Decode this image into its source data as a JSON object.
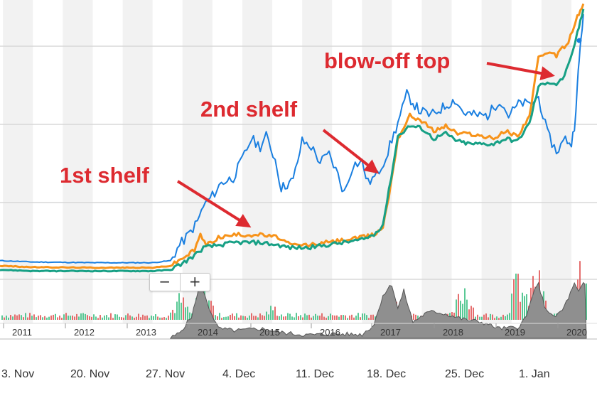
{
  "chart_data": {
    "type": "line",
    "x_tick_labels": [
      "2011",
      "2012",
      "2013",
      "2014",
      "2015",
      "2016",
      "2017",
      "2018",
      "2019",
      "2020"
    ],
    "navigator_date_labels": [
      "3. Nov",
      "20. Nov",
      "27. Nov",
      "4. Dec",
      "11. Dec",
      "18. Dec",
      "25. Dec",
      "1. Jan"
    ],
    "xlim": [
      2010.45,
      2020.25
    ],
    "ylim": [
      0,
      100
    ],
    "grid": true,
    "series": [
      {
        "color": "#1a7fe0",
        "points": [
          [
            2010.45,
            5
          ],
          [
            2011,
            4.5
          ],
          [
            2012,
            4.2
          ],
          [
            2013,
            4.2
          ],
          [
            2013.3,
            5
          ],
          [
            2013.45,
            11
          ],
          [
            2013.6,
            15
          ],
          [
            2013.75,
            20
          ],
          [
            2013.85,
            26
          ],
          [
            2014,
            30
          ],
          [
            2014.15,
            35
          ],
          [
            2014.35,
            37
          ],
          [
            2014.5,
            44
          ],
          [
            2014.65,
            52
          ],
          [
            2014.8,
            49
          ],
          [
            2014.9,
            53
          ],
          [
            2015.05,
            44
          ],
          [
            2015.15,
            33
          ],
          [
            2015.35,
            36
          ],
          [
            2015.5,
            51
          ],
          [
            2015.65,
            49
          ],
          [
            2015.8,
            43
          ],
          [
            2015.95,
            46
          ],
          [
            2016.1,
            38
          ],
          [
            2016.2,
            31
          ],
          [
            2016.35,
            42
          ],
          [
            2016.5,
            43
          ],
          [
            2016.6,
            35
          ],
          [
            2016.75,
            38
          ],
          [
            2016.9,
            45
          ],
          [
            2017.1,
            58
          ],
          [
            2017.25,
            69
          ],
          [
            2017.45,
            63
          ],
          [
            2017.65,
            61
          ],
          [
            2017.85,
            64
          ],
          [
            2018.05,
            67
          ],
          [
            2018.2,
            62
          ],
          [
            2018.4,
            61
          ],
          [
            2018.6,
            61
          ],
          [
            2018.8,
            67
          ],
          [
            2018.95,
            61
          ],
          [
            2019.15,
            66
          ],
          [
            2019.3,
            65
          ],
          [
            2019.45,
            68
          ],
          [
            2019.6,
            54
          ],
          [
            2019.75,
            47
          ],
          [
            2019.9,
            52
          ],
          [
            2020.0,
            50
          ],
          [
            2020.05,
            57
          ],
          [
            2020.1,
            72
          ],
          [
            2020.13,
            82
          ],
          [
            2020.16,
            91
          ],
          [
            2020.2,
            100
          ]
        ]
      },
      {
        "color": "#f7931a",
        "points": [
          [
            2010.45,
            3
          ],
          [
            2011,
            2.5
          ],
          [
            2012,
            2.3
          ],
          [
            2013,
            2.3
          ],
          [
            2013.3,
            3
          ],
          [
            2013.5,
            6
          ],
          [
            2013.7,
            9
          ],
          [
            2013.8,
            15
          ],
          [
            2013.9,
            11
          ],
          [
            2014.1,
            14
          ],
          [
            2014.4,
            15
          ],
          [
            2014.8,
            15
          ],
          [
            2015.1,
            14
          ],
          [
            2015.3,
            11
          ],
          [
            2015.6,
            11
          ],
          [
            2015.9,
            12
          ],
          [
            2016.2,
            13
          ],
          [
            2016.5,
            14
          ],
          [
            2016.7,
            15
          ],
          [
            2016.85,
            18
          ],
          [
            2016.95,
            30
          ],
          [
            2017.1,
            52
          ],
          [
            2017.3,
            61
          ],
          [
            2017.5,
            59
          ],
          [
            2017.7,
            55
          ],
          [
            2017.9,
            57
          ],
          [
            2018.1,
            54
          ],
          [
            2018.3,
            54
          ],
          [
            2018.5,
            53
          ],
          [
            2018.7,
            52
          ],
          [
            2018.9,
            55
          ],
          [
            2019.1,
            53
          ],
          [
            2019.3,
            61
          ],
          [
            2019.45,
            83
          ],
          [
            2019.6,
            85
          ],
          [
            2019.75,
            84
          ],
          [
            2019.85,
            87
          ],
          [
            2019.95,
            89
          ],
          [
            2020.02,
            94
          ],
          [
            2020.1,
            99
          ],
          [
            2020.15,
            101
          ],
          [
            2020.2,
            104
          ]
        ]
      },
      {
        "color": "#17a085",
        "points": [
          [
            2010.45,
            1.5
          ],
          [
            2011,
            1
          ],
          [
            2012,
            1
          ],
          [
            2013,
            1
          ],
          [
            2013.3,
            1.5
          ],
          [
            2013.5,
            4
          ],
          [
            2013.7,
            7
          ],
          [
            2013.85,
            10
          ],
          [
            2014.1,
            11
          ],
          [
            2014.4,
            12
          ],
          [
            2014.8,
            12
          ],
          [
            2015.1,
            11
          ],
          [
            2015.3,
            10
          ],
          [
            2015.6,
            10
          ],
          [
            2015.9,
            11
          ],
          [
            2016.2,
            12
          ],
          [
            2016.5,
            13
          ],
          [
            2016.7,
            15
          ],
          [
            2016.85,
            19
          ],
          [
            2016.95,
            32
          ],
          [
            2017.1,
            53
          ],
          [
            2017.3,
            57
          ],
          [
            2017.5,
            56
          ],
          [
            2017.7,
            52
          ],
          [
            2017.9,
            54
          ],
          [
            2018.1,
            51
          ],
          [
            2018.3,
            50
          ],
          [
            2018.5,
            50
          ],
          [
            2018.7,
            50
          ],
          [
            2018.9,
            52
          ],
          [
            2019.1,
            51
          ],
          [
            2019.3,
            58
          ],
          [
            2019.45,
            72
          ],
          [
            2019.6,
            74
          ],
          [
            2019.75,
            73
          ],
          [
            2019.85,
            75
          ],
          [
            2019.95,
            80
          ],
          [
            2020.02,
            85
          ],
          [
            2020.1,
            93
          ],
          [
            2020.15,
            97
          ],
          [
            2020.2,
            102
          ]
        ]
      }
    ],
    "volume": {
      "up_color": "#3cbf83",
      "down_color": "#e05555",
      "baseline": 6,
      "spikes": [
        [
          2013.45,
          26
        ],
        [
          2013.85,
          40
        ],
        [
          2015.0,
          15
        ],
        [
          2016.95,
          30
        ],
        [
          2017.05,
          45
        ],
        [
          2018.2,
          40
        ],
        [
          2019.1,
          50
        ],
        [
          2019.4,
          55
        ],
        [
          2020.1,
          68
        ],
        [
          2020.18,
          80
        ]
      ]
    },
    "navigator": {
      "fill": "#8f8f8f",
      "points": [
        [
          2013.3,
          0
        ],
        [
          2013.45,
          10
        ],
        [
          2013.65,
          40
        ],
        [
          2013.8,
          100
        ],
        [
          2013.95,
          55
        ],
        [
          2014.1,
          18
        ],
        [
          2014.4,
          14
        ],
        [
          2014.8,
          18
        ],
        [
          2015.2,
          10
        ],
        [
          2015.6,
          6
        ],
        [
          2016.0,
          8
        ],
        [
          2016.5,
          7
        ],
        [
          2016.7,
          25
        ],
        [
          2016.85,
          80
        ],
        [
          2017.0,
          100
        ],
        [
          2017.1,
          55
        ],
        [
          2017.2,
          88
        ],
        [
          2017.35,
          30
        ],
        [
          2017.55,
          45
        ],
        [
          2017.7,
          50
        ],
        [
          2017.9,
          45
        ],
        [
          2018.2,
          35
        ],
        [
          2018.5,
          30
        ],
        [
          2018.8,
          18
        ],
        [
          2019.1,
          20
        ],
        [
          2019.25,
          40
        ],
        [
          2019.35,
          80
        ],
        [
          2019.45,
          100
        ],
        [
          2019.55,
          60
        ],
        [
          2019.7,
          38
        ],
        [
          2019.85,
          52
        ],
        [
          2019.95,
          75
        ],
        [
          2020.05,
          100
        ],
        [
          2020.12,
          85
        ],
        [
          2020.2,
          100
        ],
        [
          2020.25,
          100
        ]
      ]
    },
    "annotations": [
      {
        "text": "1st shelf"
      },
      {
        "text": "2nd shelf"
      },
      {
        "text": "blow-off top"
      }
    ],
    "annotation_color": "#dd2a30",
    "axis_text_color": "#333333",
    "grid_color": "#d8d8d8",
    "band_color": "#f2f2f2"
  },
  "zoom": {
    "minus": "−",
    "plus": "+"
  }
}
